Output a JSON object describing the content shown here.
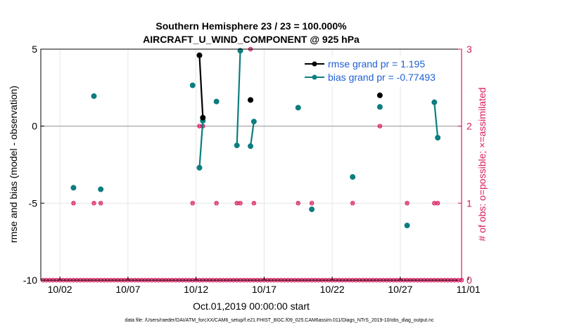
{
  "colors": {
    "rmse": "#000000",
    "bias": "#0d7d80",
    "obs": "#d81b60",
    "zero_line": "#b3b3b3",
    "grid": "#e6e6e6",
    "legend_text": "#1f5fd6"
  },
  "chart_data": {
    "type": "line",
    "title_line1": "Southern Hemisphere 23 / 23 = 100.000%",
    "title_line2": "AIRCRAFT_U_WIND_COMPONENT @ 925 hPa",
    "xlabel": "Oct.01,2019 00:00:00 start",
    "ylabel_left": "rmse and bias (model - observation)",
    "ylabel_right": "# of obs: o=possible; ×=assimilated",
    "footer": "data file: /Users/raeder/DAI/ATM_forcXX/CAM6_setup/f.e21.FHIST_BGC.f09_025.CAM6assim.011/Diags_NTrS_2019-10/obs_diag_output.nc",
    "xlim": [
      0.6,
      31.5
    ],
    "ylim_left": [
      -10,
      5
    ],
    "ylim_right": [
      0,
      3
    ],
    "grid": true,
    "legend_position": "top-right",
    "x_ticks": [
      {
        "x": 2,
        "label": "10/02"
      },
      {
        "x": 7,
        "label": "10/07"
      },
      {
        "x": 12,
        "label": "10/12"
      },
      {
        "x": 17,
        "label": "10/17"
      },
      {
        "x": 22,
        "label": "10/22"
      },
      {
        "x": 27,
        "label": "10/27"
      },
      {
        "x": 32,
        "label": "11/01"
      }
    ],
    "y_ticks_left": [
      {
        "y": 5,
        "label": "5"
      },
      {
        "y": 0,
        "label": "0"
      },
      {
        "y": -5,
        "label": "-5"
      },
      {
        "y": -10,
        "label": "-10"
      }
    ],
    "y_ticks_right": [
      {
        "y": 3,
        "label": "3"
      },
      {
        "y": 2,
        "label": "2"
      },
      {
        "y": 1,
        "label": "1"
      },
      {
        "y": 0,
        "label": "0"
      }
    ],
    "series": [
      {
        "name": "rmse grand pr = 1.195",
        "axis": "left",
        "segments": [
          [
            [
              12.25,
              4.6
            ],
            [
              12.5,
              0.55
            ]
          ],
          [
            [
              16.0,
              1.7
            ]
          ],
          [
            [
              25.5,
              2.0
            ]
          ]
        ]
      },
      {
        "name": "bias grand pr = -0.77493",
        "axis": "left",
        "segments": [
          [
            [
              3.0,
              -4.0
            ]
          ],
          [
            [
              4.5,
              1.95
            ]
          ],
          [
            [
              5.0,
              -4.1
            ]
          ],
          [
            [
              11.75,
              2.65
            ]
          ],
          [
            [
              12.25,
              -2.7
            ],
            [
              12.5,
              0.35
            ]
          ],
          [
            [
              13.5,
              1.6
            ]
          ],
          [
            [
              15.0,
              -1.25
            ],
            [
              15.25,
              4.9
            ]
          ],
          [
            [
              16.0,
              -1.3
            ],
            [
              16.25,
              0.3
            ]
          ],
          [
            [
              19.5,
              1.2
            ]
          ],
          [
            [
              20.5,
              -5.4
            ]
          ],
          [
            [
              23.5,
              -3.3
            ]
          ],
          [
            [
              25.5,
              1.25
            ]
          ],
          [
            [
              27.5,
              -6.45
            ]
          ],
          [
            [
              29.5,
              1.55
            ],
            [
              29.75,
              -0.75
            ]
          ]
        ]
      }
    ],
    "obs_possible": {
      "axis": "right",
      "points": [
        [
          3.0,
          1
        ],
        [
          4.5,
          1
        ],
        [
          5.0,
          1
        ],
        [
          11.75,
          1
        ],
        [
          12.25,
          2
        ],
        [
          12.5,
          2
        ],
        [
          13.5,
          1
        ],
        [
          15.0,
          1
        ],
        [
          15.25,
          1
        ],
        [
          16.0,
          3
        ],
        [
          16.25,
          1
        ],
        [
          19.5,
          1
        ],
        [
          20.5,
          1
        ],
        [
          23.5,
          1
        ],
        [
          25.5,
          2
        ],
        [
          27.5,
          1
        ],
        [
          29.5,
          1
        ],
        [
          29.75,
          1
        ]
      ]
    },
    "obs_zero_line": {
      "axis": "right",
      "value": 0,
      "from": 0.75,
      "to": 31.5,
      "step": 0.25
    }
  }
}
